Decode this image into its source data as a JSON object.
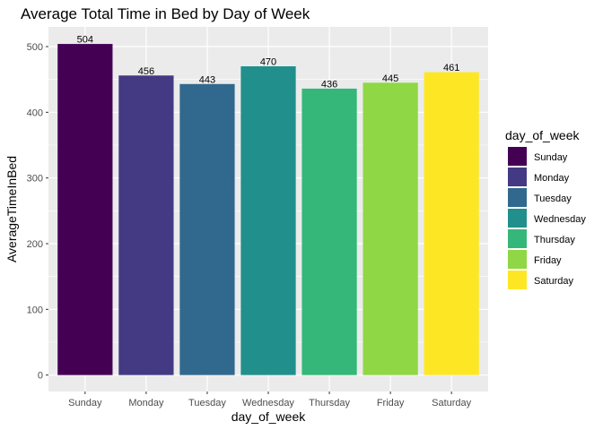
{
  "chart_data": {
    "type": "bar",
    "title": "Average Total Time in Bed by Day of Week",
    "xlabel": "day_of_week",
    "ylabel": "AverageTimeInBed",
    "categories": [
      "Sunday",
      "Monday",
      "Tuesday",
      "Wednesday",
      "Thursday",
      "Friday",
      "Saturday"
    ],
    "values": [
      504,
      456,
      443,
      470,
      436,
      445,
      461
    ],
    "data_labels": [
      "504",
      "456",
      "443",
      "470",
      "436",
      "445",
      "461"
    ],
    "colors": [
      "#440154",
      "#443A83",
      "#31688E",
      "#21908C",
      "#35B779",
      "#8FD744",
      "#FDE725"
    ],
    "ylim": [
      -25,
      530
    ],
    "yticks": [
      0,
      100,
      200,
      300,
      400,
      500
    ],
    "ytick_labels": [
      "0",
      "100",
      "200",
      "300",
      "400",
      "500"
    ],
    "grid": true,
    "panel_background": "#EBEBEB",
    "legend": {
      "title": "day_of_week",
      "position": "right",
      "entries": [
        "Sunday",
        "Monday",
        "Tuesday",
        "Wednesday",
        "Thursday",
        "Friday",
        "Saturday"
      ]
    }
  }
}
